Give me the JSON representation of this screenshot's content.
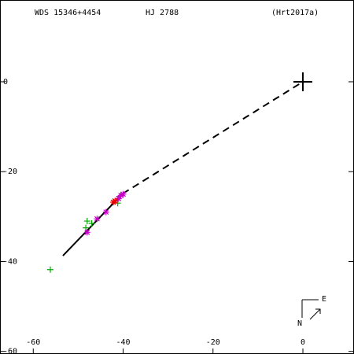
{
  "chart_data": {
    "type": "scatter",
    "title": "WDS 15346+4454",
    "subtitle": "HJ 2788",
    "reference": "(Hrt2017a)",
    "compass": {
      "east": "E",
      "north": "N"
    },
    "xlim": [
      -67.4,
      11.2
    ],
    "ylim": [
      -60.4,
      18.2
    ],
    "xticks": [
      -60,
      -40,
      -20,
      0
    ],
    "yticks": [
      0,
      -20,
      -40,
      -60
    ],
    "primary": {
      "x": 0,
      "y": 0
    },
    "orbit": [
      {
        "style": "solid",
        "x": [
          -53.4,
          -40.1
        ],
        "values": [
          -38.7,
          -24.9
        ]
      },
      {
        "style": "dashed",
        "x": [
          -40.1,
          0
        ],
        "values": [
          -24.9,
          0
        ]
      }
    ],
    "series": [
      {
        "color": "#00aa00",
        "marker": "+",
        "x": [
          -56.2,
          -48,
          -48.3,
          -47,
          -40.8,
          -41.2
        ],
        "values": [
          -41.8,
          -31,
          -32.5,
          -31.5,
          -25.5,
          -27
        ]
      },
      {
        "color": "#cc00cc",
        "marker": "*",
        "x": [
          -48,
          -45.8,
          -43.8,
          -40,
          -40.5,
          -41
        ],
        "values": [
          -33.5,
          -30.5,
          -29,
          -25,
          -25.3,
          -26
        ]
      },
      {
        "color": "#ee0000",
        "marker": "*",
        "x": [
          -41.8,
          -42.2
        ],
        "values": [
          -26.5,
          -26.8
        ]
      }
    ]
  }
}
